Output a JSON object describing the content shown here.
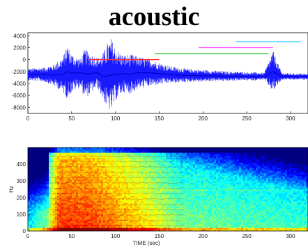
{
  "title": "acoustic",
  "chart_data": [
    {
      "type": "line",
      "title": "",
      "xlabel": "",
      "ylabel": "",
      "xlim": [
        0,
        320
      ],
      "ylim": [
        -9000,
        4500
      ],
      "x_ticks": [
        "0",
        "50",
        "100",
        "150",
        "200",
        "250",
        "300"
      ],
      "y_ticks": [
        "4000",
        "2000",
        "0",
        "-2000",
        "-4000",
        "-6000",
        "-8000"
      ],
      "series": [
        {
          "color": "#1a1aff",
          "x": [
            0,
            10,
            20,
            30,
            40,
            45,
            50,
            55,
            60,
            65,
            70,
            75,
            80,
            85,
            90,
            95,
            100,
            105,
            110,
            115,
            120,
            125,
            130,
            140,
            150,
            160,
            170,
            180,
            190,
            200,
            210,
            220,
            230,
            240,
            250,
            260,
            270,
            280,
            290,
            300,
            310,
            320
          ],
          "upper": [
            -1500,
            -1400,
            -1200,
            -800,
            500,
            2500,
            1000,
            500,
            200,
            1800,
            1300,
            700,
            400,
            900,
            2500,
            3600,
            2000,
            1200,
            800,
            900,
            800,
            600,
            400,
            100,
            -500,
            -1000,
            -1300,
            -1500,
            -1600,
            -1700,
            -1800,
            -1900,
            -2000,
            -2000,
            -2100,
            -2100,
            -2200,
            1500,
            -2200,
            -2300,
            -2300,
            -2400
          ],
          "lower": [
            -3500,
            -3600,
            -3800,
            -4400,
            -5500,
            -6500,
            -5500,
            -5000,
            -4600,
            -6500,
            -6000,
            -5200,
            -4800,
            -6500,
            -8000,
            -8800,
            -7000,
            -6000,
            -5500,
            -5800,
            -5500,
            -5000,
            -4800,
            -4500,
            -4200,
            -4000,
            -3900,
            -3800,
            -3700,
            -3700,
            -3600,
            -3600,
            -3600,
            -3500,
            -3500,
            -3500,
            -3400,
            -5500,
            -3400,
            -3400,
            -3400,
            -3300
          ]
        }
      ],
      "overlay_segments": [
        {
          "color": "#ff3030",
          "x": [
            70,
            150
          ],
          "y": 0
        },
        {
          "color": "#30c030",
          "x": [
            145,
            275
          ],
          "y": 1000
        },
        {
          "color": "#ff40ff",
          "x": [
            195,
            280
          ],
          "y": 2000
        },
        {
          "color": "#40d0ff",
          "x": [
            238,
            312
          ],
          "y": 3000
        }
      ]
    },
    {
      "type": "heatmap",
      "title": "",
      "xlabel": "TIME (sec)",
      "ylabel": "Hz",
      "xlim": [
        0,
        320
      ],
      "ylim": [
        0,
        500
      ],
      "x_ticks": [
        "0",
        "50",
        "100",
        "150",
        "200",
        "250",
        "300"
      ],
      "y_ticks": [
        "0",
        "100",
        "200",
        "300",
        "400"
      ],
      "colormap": "jet"
    }
  ]
}
